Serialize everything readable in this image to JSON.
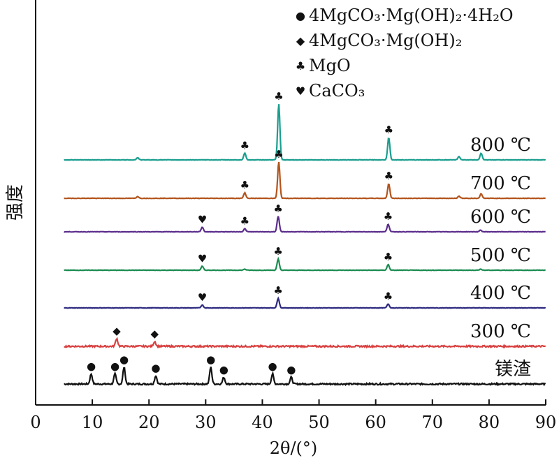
{
  "chart_data": {
    "type": "line",
    "xlabel": "2θ/(°)",
    "ylabel": "强度",
    "xlim": [
      0,
      90
    ],
    "xticks": [
      0,
      10,
      20,
      30,
      40,
      50,
      60,
      70,
      80,
      90
    ],
    "legend_position": "top-right",
    "legend": [
      {
        "symbol": "●",
        "label": "4MgCO₃·Mg(OH)₂·4H₂O"
      },
      {
        "symbol": "◆",
        "label": "4MgCO₃·Mg(OH)₂"
      },
      {
        "symbol": "♣",
        "label": "MgO"
      },
      {
        "symbol": "♥",
        "label": "CaCO₃"
      }
    ],
    "series": [
      {
        "name": "镁渣",
        "color": "#111111",
        "peaks": [
          [
            9.8,
            0.6
          ],
          [
            14.0,
            0.6
          ],
          [
            15.6,
            1.0
          ],
          [
            21.2,
            0.5
          ],
          [
            30.9,
            1.0
          ],
          [
            33.2,
            0.4
          ],
          [
            41.8,
            0.6
          ],
          [
            45.1,
            0.4
          ]
        ],
        "markers": [
          {
            "symbol": "●",
            "x": 9.8
          },
          {
            "symbol": "●",
            "x": 14.0
          },
          {
            "symbol": "●",
            "x": 15.6
          },
          {
            "symbol": "●",
            "x": 21.2
          },
          {
            "symbol": "●",
            "x": 30.9
          },
          {
            "symbol": "●",
            "x": 33.2
          },
          {
            "symbol": "●",
            "x": 41.8
          },
          {
            "symbol": "●",
            "x": 45.1
          }
        ]
      },
      {
        "name": "300 ℃",
        "color": "#d94040",
        "peaks": [
          [
            14.3,
            0.8
          ],
          [
            21.0,
            0.5
          ]
        ],
        "markers": [
          {
            "symbol": "◆",
            "x": 14.3
          },
          {
            "symbol": "◆",
            "x": 21.0
          }
        ]
      },
      {
        "name": "400 ℃",
        "color": "#2e2a80",
        "peaks": [
          [
            29.4,
            0.3
          ],
          [
            42.8,
            1.0
          ],
          [
            62.2,
            0.4
          ]
        ],
        "markers": [
          {
            "symbol": "♥",
            "x": 29.4
          },
          {
            "symbol": "♣",
            "x": 42.8
          },
          {
            "symbol": "♣",
            "x": 62.2
          }
        ]
      },
      {
        "name": "500 ℃",
        "color": "#1a8c50",
        "peaks": [
          [
            29.4,
            0.35
          ],
          [
            36.9,
            0.1
          ],
          [
            42.8,
            1.0
          ],
          [
            62.2,
            0.5
          ],
          [
            78.5,
            0.1
          ]
        ],
        "markers": [
          {
            "symbol": "♥",
            "x": 29.4
          },
          {
            "symbol": "♣",
            "x": 42.8
          },
          {
            "symbol": "♣",
            "x": 62.2
          }
        ]
      },
      {
        "name": "600 ℃",
        "color": "#5b2d8c",
        "peaks": [
          [
            29.4,
            0.3
          ],
          [
            36.9,
            0.2
          ],
          [
            42.8,
            1.0
          ],
          [
            62.2,
            0.5
          ],
          [
            78.5,
            0.1
          ]
        ],
        "markers": [
          {
            "symbol": "♥",
            "x": 29.4
          },
          {
            "symbol": "♣",
            "x": 36.9
          },
          {
            "symbol": "♣",
            "x": 42.8
          },
          {
            "symbol": "♣",
            "x": 62.2
          }
        ]
      },
      {
        "name": "700 ℃",
        "color": "#b3541c",
        "peaks": [
          [
            18.0,
            0.05
          ],
          [
            36.9,
            0.15
          ],
          [
            42.9,
            1.0
          ],
          [
            62.3,
            0.4
          ],
          [
            74.7,
            0.06
          ],
          [
            78.6,
            0.12
          ]
        ],
        "markers": [
          {
            "symbol": "♣",
            "x": 36.9
          },
          {
            "symbol": "♣",
            "x": 42.9
          },
          {
            "symbol": "♣",
            "x": 62.3
          }
        ]
      },
      {
        "name": "800 ℃",
        "color": "#1a9e8f",
        "peaks": [
          [
            18.0,
            0.04
          ],
          [
            36.9,
            0.12
          ],
          [
            42.9,
            1.0
          ],
          [
            62.3,
            0.4
          ],
          [
            74.7,
            0.06
          ],
          [
            78.6,
            0.12
          ]
        ],
        "markers": [
          {
            "symbol": "♣",
            "x": 36.9
          },
          {
            "symbol": "♣",
            "x": 42.9
          },
          {
            "symbol": "♣",
            "x": 62.3
          }
        ]
      }
    ]
  }
}
